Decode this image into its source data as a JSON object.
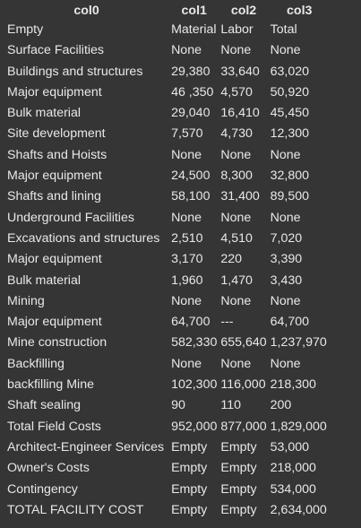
{
  "table": {
    "headers": [
      "col0",
      "col1",
      "col2",
      "col3"
    ],
    "rows": [
      [
        "Empty",
        "Material",
        "Labor",
        "Total"
      ],
      [
        "Surface Facilities",
        "None",
        "None",
        "None"
      ],
      [
        "Buildings and structures",
        "29,380",
        "33,640",
        "63,020"
      ],
      [
        "Major equipment",
        "46 ,350",
        "4,570",
        "50,920"
      ],
      [
        "Bulk material",
        "29,040",
        "16,410",
        "45,450"
      ],
      [
        "Site development",
        "7,570",
        "4,730",
        "12,300"
      ],
      [
        "Shafts and Hoists",
        "None",
        "None",
        "None"
      ],
      [
        "Major equipment",
        "24,500",
        "8,300",
        "32,800"
      ],
      [
        "Shafts and lining",
        "58,100",
        "31,400",
        "89,500"
      ],
      [
        "Underground Facilities",
        "None",
        "None",
        "None"
      ],
      [
        "Excavations and structures",
        "2,510",
        "4,510",
        "7,020"
      ],
      [
        "Major equipment",
        "3,170",
        "220",
        "3,390"
      ],
      [
        "Bulk material",
        "1,960",
        "1,470",
        "3,430"
      ],
      [
        "Mining",
        "None",
        "None",
        "None"
      ],
      [
        "Major equipment",
        "64,700",
        "---",
        "64,700"
      ],
      [
        "Mine construction",
        "582,330",
        "655,640",
        "1,237,970"
      ],
      [
        "Backfilling",
        "None",
        "None",
        "None"
      ],
      [
        "backfilling Mine",
        "102,300",
        "116,000",
        "218,300"
      ],
      [
        "Shaft sealing",
        "90",
        "110",
        "200"
      ],
      [
        "Total Field Costs",
        "952,000",
        "877,000",
        "1,829,000"
      ],
      [
        "Architect-Engineer Services",
        "Empty",
        "Empty",
        "53,000"
      ],
      [
        "Owner's Costs",
        "Empty",
        "Empty",
        "218,000"
      ],
      [
        "Contingency",
        "Empty",
        "Empty",
        "534,000"
      ],
      [
        "TOTAL FACILITY COST",
        "Empty",
        "Empty",
        "2,634,000"
      ]
    ]
  }
}
